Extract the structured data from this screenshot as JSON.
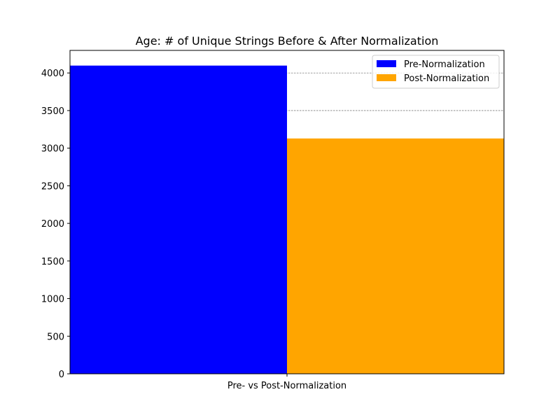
{
  "chart_data": {
    "type": "bar",
    "title": "Age: # of Unique Strings Before & After Normalization",
    "categories": [
      "Pre- vs Post-Normalization"
    ],
    "series": [
      {
        "name": "Pre-Normalization",
        "values": [
          4098
        ],
        "color": "#0000ff"
      },
      {
        "name": "Post-Normalization",
        "values": [
          3129
        ],
        "color": "#ffa500"
      }
    ],
    "xlabel": "",
    "ylabel": "",
    "ylim": [
      0,
      4300
    ],
    "yticks": [
      0,
      500,
      1000,
      1500,
      2000,
      2500,
      3000,
      3500,
      4000
    ],
    "ytick_labels": [
      "0",
      "500",
      "1000",
      "1500",
      "2000",
      "2500",
      "3000",
      "3500",
      "4000"
    ],
    "grid": {
      "y": true,
      "style": "dashed",
      "color": "#808080"
    },
    "legend": {
      "position": "top-right"
    }
  }
}
